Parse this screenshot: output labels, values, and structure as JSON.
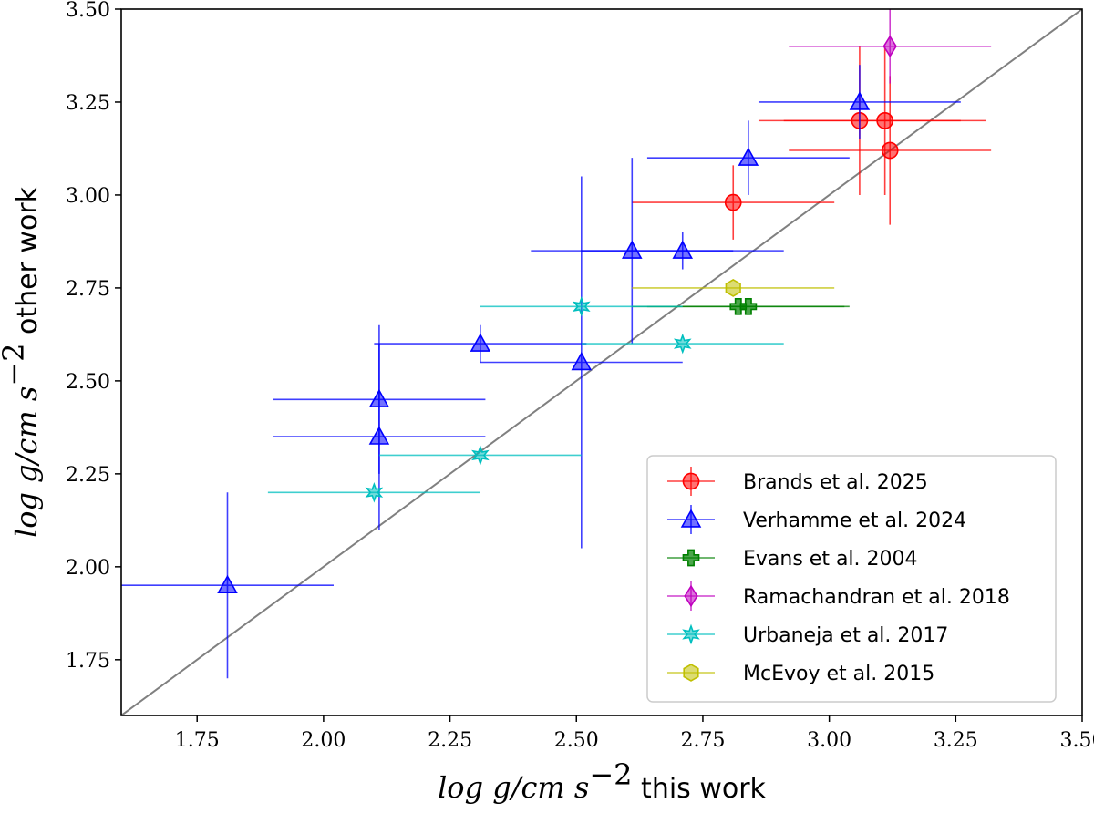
{
  "chart_data": {
    "type": "scatter",
    "title": "",
    "xlabel": {
      "math": "log g/cm s",
      "exp": "−2",
      "suffix": " this work"
    },
    "ylabel": {
      "math": "log g/cm s",
      "exp": "−2",
      "suffix": " other work"
    },
    "xlim": [
      1.6,
      3.5
    ],
    "ylim": [
      1.6,
      3.5
    ],
    "xticks": [
      "1.75",
      "2.00",
      "2.25",
      "2.50",
      "2.75",
      "3.00",
      "3.25",
      "3.50"
    ],
    "yticks": [
      "1.75",
      "2.00",
      "2.25",
      "2.50",
      "2.75",
      "3.00",
      "3.25",
      "3.50"
    ],
    "reference_line": {
      "type": "one-to-one",
      "color": "#808080"
    },
    "legend_position": "lower-right",
    "series": [
      {
        "name": "Brands et al. 2025",
        "color": "#ff0000",
        "marker": "circle",
        "points": [
          {
            "x": 2.81,
            "y": 2.98,
            "xerr": 0.2,
            "yerr": 0.1
          },
          {
            "x": 3.06,
            "y": 3.2,
            "xerr": 0.2,
            "yerr": 0.2
          },
          {
            "x": 3.11,
            "y": 3.2,
            "xerr": 0.2,
            "yerr": 0.2
          },
          {
            "x": 3.12,
            "y": 3.12,
            "xerr": 0.2,
            "yerr": 0.2
          }
        ]
      },
      {
        "name": "Verhamme et al. 2024",
        "color": "#0000ff",
        "marker": "triangle",
        "points": [
          {
            "x": 1.81,
            "y": 1.95,
            "xerr": 0.21,
            "yerr": 0.25
          },
          {
            "x": 2.11,
            "y": 2.45,
            "xerr": 0.21,
            "yerr": 0.2
          },
          {
            "x": 2.11,
            "y": 2.35,
            "xerr": 0.21,
            "yerr": 0.25
          },
          {
            "x": 2.31,
            "y": 2.6,
            "xerr": 0.21,
            "yerr": 0.05
          },
          {
            "x": 2.51,
            "y": 2.55,
            "xerr": 0.2,
            "yerr": 0.5
          },
          {
            "x": 2.61,
            "y": 2.85,
            "xerr": 0.2,
            "yerr": 0.25
          },
          {
            "x": 2.71,
            "y": 2.85,
            "xerr": 0.2,
            "yerr": 0.05
          },
          {
            "x": 2.84,
            "y": 3.1,
            "xerr": 0.2,
            "yerr": 0.1
          },
          {
            "x": 3.06,
            "y": 3.25,
            "xerr": 0.2,
            "yerr": 0.1
          }
        ]
      },
      {
        "name": "Evans et al. 2004",
        "color": "#008000",
        "marker": "plus",
        "points": [
          {
            "x": 2.82,
            "y": 2.7,
            "xerr": 0.21,
            "yerr": 0.0
          },
          {
            "x": 2.84,
            "y": 2.7,
            "xerr": 0.2,
            "yerr": 0.0
          }
        ]
      },
      {
        "name": "Ramachandran et al. 2018",
        "color": "#bf00bf",
        "marker": "diamond",
        "points": [
          {
            "x": 3.12,
            "y": 3.4,
            "xerr": 0.2,
            "yerr": 0.1
          }
        ]
      },
      {
        "name": "Urbaneja et al. 2017",
        "color": "#00bfbf",
        "marker": "star",
        "points": [
          {
            "x": 2.1,
            "y": 2.2,
            "xerr": 0.21,
            "yerr": 0.0
          },
          {
            "x": 2.31,
            "y": 2.3,
            "xerr": 0.2,
            "yerr": 0.0
          },
          {
            "x": 2.51,
            "y": 2.7,
            "xerr": 0.2,
            "yerr": 0.0
          },
          {
            "x": 2.71,
            "y": 2.6,
            "xerr": 0.2,
            "yerr": 0.0
          }
        ]
      },
      {
        "name": "McEvoy et al. 2015",
        "color": "#bfbf00",
        "marker": "hexagon",
        "points": [
          {
            "x": 2.81,
            "y": 2.75,
            "xerr": 0.2,
            "yerr": 0.0
          }
        ]
      }
    ]
  }
}
